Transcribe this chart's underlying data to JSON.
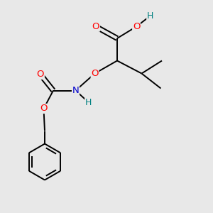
{
  "bg_color": "#e8e8e8",
  "atom_colors": {
    "O": "#ff0000",
    "N": "#0000cc",
    "C": "#000000",
    "H": "#008080"
  },
  "bond_color": "#000000",
  "line_width": 1.4,
  "font_size": 9.5,
  "font_size_h": 9.0,
  "figsize": [
    3.0,
    3.0
  ],
  "dpi": 100
}
